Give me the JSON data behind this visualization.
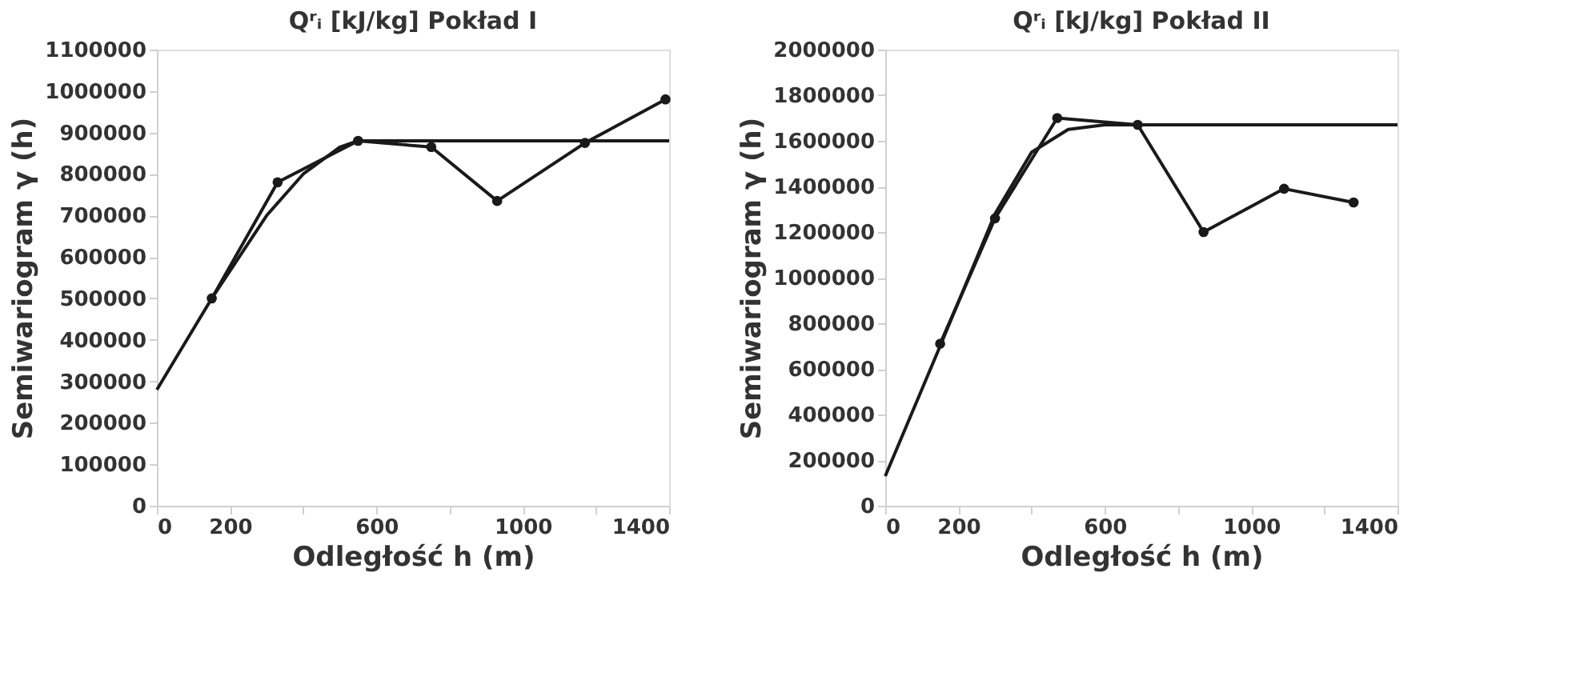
{
  "chart_data": [
    {
      "type": "line",
      "title": "Qʳᵢ [kJ/kg] Pokład I",
      "xlabel": "Odległość h (m)",
      "ylabel": "Semiwariogram γ (h)",
      "xlim": [
        0,
        1400
      ],
      "xticks": [
        0,
        200,
        {
          "value": 400,
          "label": null
        },
        600,
        {
          "value": 800,
          "label": null
        },
        1000,
        {
          "value": 1200,
          "label": null
        },
        1400
      ],
      "ylim": [
        0,
        1100000
      ],
      "yticks": [
        0,
        100000,
        200000,
        300000,
        400000,
        500000,
        600000,
        700000,
        800000,
        900000,
        1000000,
        1100000
      ],
      "grid": false,
      "line_style": "solid",
      "series": [
        {
          "x": [
            150,
            330,
            550,
            750,
            930,
            1170,
            1390
          ],
          "values": [
            500000,
            780000,
            880000,
            865000,
            735000,
            875000,
            980000
          ],
          "color": "#1a1a1a",
          "marker": "circle"
        },
        {
          "x": [
            0,
            150,
            300,
            400,
            500,
            550,
            1400
          ],
          "values": [
            280000,
            500000,
            700000,
            800000,
            865000,
            880000,
            880000
          ],
          "color": "#1a1a1a",
          "marker": "none"
        }
      ]
    },
    {
      "type": "line",
      "title": "Qʳᵢ [kJ/kg] Pokład II",
      "xlabel": "Odległość h (m)",
      "ylabel": "Semiwariogram γ (h)",
      "xlim": [
        0,
        1400
      ],
      "xticks": [
        0,
        200,
        {
          "value": 400,
          "label": null
        },
        600,
        {
          "value": 800,
          "label": null
        },
        1000,
        {
          "value": 1200,
          "label": null
        },
        1400
      ],
      "ylim": [
        0,
        2000000
      ],
      "yticks": [
        0,
        200000,
        400000,
        600000,
        800000,
        1000000,
        1200000,
        1400000,
        1600000,
        1800000,
        2000000
      ],
      "grid": false,
      "line_style": "solid",
      "series": [
        {
          "x": [
            150,
            300,
            470,
            690,
            870,
            1090,
            1280
          ],
          "values": [
            710000,
            1260000,
            1700000,
            1670000,
            1200000,
            1390000,
            1330000
          ],
          "color": "#1a1a1a",
          "marker": "circle"
        },
        {
          "x": [
            0,
            150,
            300,
            400,
            500,
            600,
            1400
          ],
          "values": [
            130000,
            700000,
            1280000,
            1550000,
            1650000,
            1670000,
            1670000
          ],
          "color": "#1a1a1a",
          "marker": "none"
        }
      ]
    }
  ]
}
